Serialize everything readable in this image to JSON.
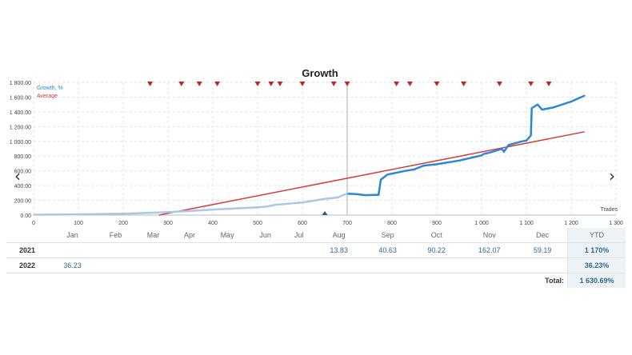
{
  "chart_data": {
    "type": "line",
    "title": "Growth",
    "xlabel": "Trades",
    "ylabel": "",
    "xlim": [
      0,
      1300
    ],
    "ylim": [
      0,
      1800
    ],
    "x_ticks": [
      "0",
      "100",
      "200",
      "300",
      "400",
      "500",
      "600",
      "700",
      "800",
      "900",
      "1 000",
      "1 100",
      "1 200",
      "1 300"
    ],
    "y_ticks": [
      "0.00",
      "200.00",
      "400.00",
      "600.00",
      "800.00",
      "1 000.00",
      "1 200.00",
      "1 400.00",
      "1 600.00",
      "1 800.00"
    ],
    "legend": [
      "Growth, %",
      "Average"
    ],
    "legend_position": "top-left",
    "grid": true,
    "series": [
      {
        "name": "Growth, %",
        "color_light": "#a9c8e6",
        "color": "#2b86d6",
        "switch_x": 700,
        "points": [
          [
            0,
            5
          ],
          [
            50,
            7
          ],
          [
            100,
            10
          ],
          [
            150,
            14
          ],
          [
            200,
            20
          ],
          [
            250,
            28
          ],
          [
            300,
            40
          ],
          [
            350,
            55
          ],
          [
            400,
            75
          ],
          [
            450,
            90
          ],
          [
            500,
            105
          ],
          [
            520,
            115
          ],
          [
            540,
            140
          ],
          [
            600,
            170
          ],
          [
            650,
            220
          ],
          [
            680,
            240
          ],
          [
            690,
            270
          ],
          [
            700,
            290
          ],
          [
            720,
            285
          ],
          [
            740,
            270
          ],
          [
            770,
            275
          ],
          [
            775,
            480
          ],
          [
            790,
            550
          ],
          [
            830,
            600
          ],
          [
            850,
            620
          ],
          [
            870,
            670
          ],
          [
            900,
            690
          ],
          [
            950,
            740
          ],
          [
            1000,
            810
          ],
          [
            1005,
            830
          ],
          [
            1020,
            850
          ],
          [
            1045,
            900
          ],
          [
            1050,
            860
          ],
          [
            1060,
            950
          ],
          [
            1090,
            1000
          ],
          [
            1100,
            1010
          ],
          [
            1110,
            1080
          ],
          [
            1112,
            1450
          ],
          [
            1125,
            1500
          ],
          [
            1135,
            1430
          ],
          [
            1160,
            1460
          ],
          [
            1200,
            1540
          ],
          [
            1230,
            1620
          ]
        ]
      },
      {
        "name": "Average",
        "color": "#d63c3c",
        "points": [
          [
            280,
            0
          ],
          [
            1230,
            1130
          ]
        ]
      }
    ],
    "markers": [
      260,
      330,
      370,
      410,
      500,
      530,
      550,
      600,
      670,
      700,
      810,
      840,
      900,
      960,
      1040,
      1110,
      1150
    ],
    "start_marker_x": 650
  },
  "table": {
    "months": [
      "Jan",
      "Feb",
      "Mar",
      "Apr",
      "May",
      "Jun",
      "Jul",
      "Aug",
      "Sep",
      "Oct",
      "Nov",
      "Dec"
    ],
    "ytd_label": "YTD",
    "rows": [
      {
        "year": "2021",
        "values": [
          "",
          "",
          "",
          "",
          "",
          "",
          "",
          "13.83",
          "40.63",
          "90.22",
          "162.07",
          "59.19"
        ],
        "ytd": "1 170%"
      },
      {
        "year": "2022",
        "values": [
          "36.23",
          "",
          "",
          "",
          "",
          "",
          "",
          "",
          "",
          "",
          "",
          ""
        ],
        "ytd": "36.23%"
      }
    ],
    "total_label": "Total:",
    "total_value": "1 630.69%"
  },
  "nav": {
    "left": "‹",
    "right": "›"
  }
}
